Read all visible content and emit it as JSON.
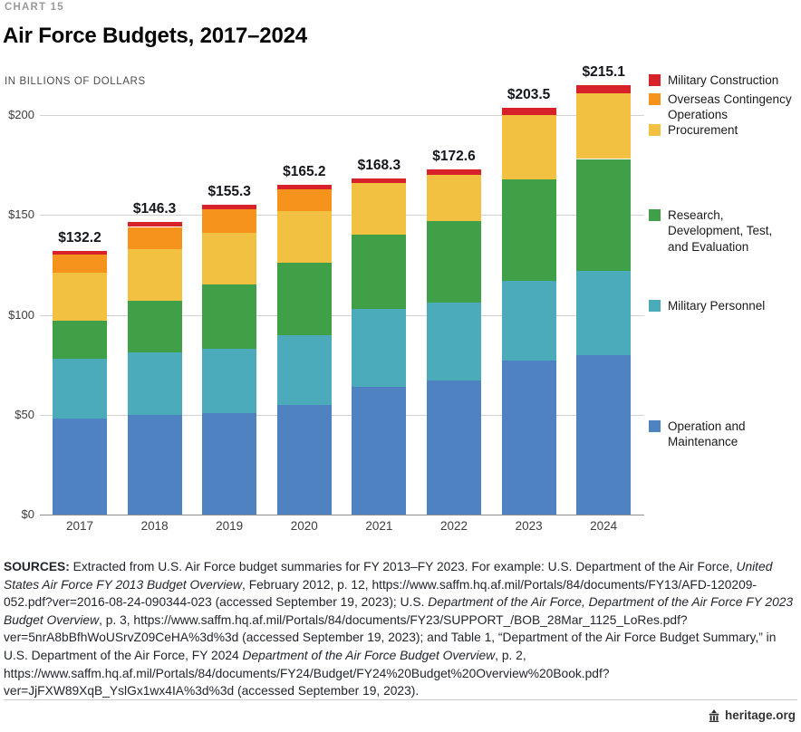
{
  "header": {
    "kicker": "CHART 15",
    "title": "Air Force Budgets, 2017–2024",
    "units_label": "IN BILLIONS OF DOLLARS"
  },
  "chart_data": {
    "type": "bar",
    "stacked": true,
    "title": "Air Force Budgets, 2017–2024",
    "xlabel": "",
    "ylabel": "In billions of dollars",
    "ylim": [
      0,
      200
    ],
    "grid": true,
    "legend_position": "right",
    "categories": [
      "2017",
      "2018",
      "2019",
      "2020",
      "2021",
      "2022",
      "2023",
      "2024"
    ],
    "series": [
      {
        "name": "Operation and Maintenance",
        "color": "#4e82c0",
        "values": [
          48.0,
          50.0,
          51.0,
          55.0,
          64.0,
          67.0,
          77.0,
          80.0
        ]
      },
      {
        "name": "Military Personnel",
        "color": "#4babba",
        "values": [
          30.0,
          31.0,
          32.0,
          35.0,
          39.0,
          39.0,
          40.0,
          42.0
        ]
      },
      {
        "name": "Research, Development, Test, and Evaluation",
        "color": "#3fa047",
        "values": [
          19.0,
          26.0,
          32.0,
          36.0,
          37.0,
          41.0,
          51.0,
          56.0
        ]
      },
      {
        "name": "Procurement",
        "color": "#f3c141",
        "values": [
          24.0,
          26.0,
          26.0,
          26.0,
          26.0,
          23.0,
          32.0,
          33.0
        ]
      },
      {
        "name": "Overseas Contingency Operations",
        "color": "#f6931d",
        "values": [
          9.0,
          11.0,
          12.0,
          11.0,
          0,
          0,
          0,
          0
        ]
      },
      {
        "name": "Military Construction",
        "color": "#d7222a",
        "values": [
          2.2,
          2.3,
          2.3,
          2.2,
          2.3,
          2.6,
          3.5,
          4.1
        ]
      }
    ],
    "totals": [
      132.2,
      146.3,
      155.3,
      165.2,
      168.3,
      172.6,
      203.5,
      215.1
    ],
    "totals_display": [
      "$132.2",
      "$146.3",
      "$155.3",
      "$165.2",
      "$168.3",
      "$172.6",
      "$203.5",
      "$215.1"
    ],
    "yticks": [
      0,
      50,
      100,
      150,
      200
    ],
    "ytick_labels": [
      "$0",
      "$50",
      "$100",
      "$150",
      "$200"
    ]
  },
  "legend": {
    "items": [
      {
        "label": "Military Construction",
        "color": "#d7222a"
      },
      {
        "label": "Overseas Contingency Operations",
        "color": "#f6931d"
      },
      {
        "label": "Procurement",
        "color": "#f3c141"
      },
      {
        "label": "Research, Development, Test, and Evaluation",
        "color": "#3fa047"
      },
      {
        "label": "Military Personnel",
        "color": "#4babba"
      },
      {
        "label": "Operation and Maintenance",
        "color": "#4e82c0"
      }
    ]
  },
  "footer": {
    "sources_segments": [
      {
        "style": "b",
        "text": "SOURCES: "
      },
      {
        "style": "n",
        "text": "Extracted from U.S. Air Force budget summaries for FY 2013–FY 2023. For example: U.S. Department of the Air Force, "
      },
      {
        "style": "i",
        "text": "United States Air Force FY 2013 Budget Overview"
      },
      {
        "style": "n",
        "text": ", February 2012, p. 12, https://www.saffm.hq.af.mil/Portals/84/documents/FY13/AFD-120209-052.pdf?ver=2016-08-24-090344-023 (accessed September 19, 2023); U.S. "
      },
      {
        "style": "i",
        "text": "Department of the Air Force, Department of the Air Force FY 2023 Budget Overview"
      },
      {
        "style": "n",
        "text": ", p. 3, https://www.saffm.hq.af.mil/Portals/84/documents/FY23/SUPPORT_/BOB_28Mar_1125_LoRes.pdf?ver=5nrA8bBfhWoUSrvZ09CeHA%3d%3d (accessed September 19, 2023); and Table 1, “Department of the Air Force Budget Summary,” in U.S. Department of the Air Force, FY 2024 "
      },
      {
        "style": "i",
        "text": "Department of the Air Force Budget Overview"
      },
      {
        "style": "n",
        "text": ", p. 2, https://www.saffm.hq.af.mil/Portals/84/documents/FY24/Budget/FY24%20Budget%20Overview%20Book.pdf?ver=JjFXW89XqB_YslGx1wx4IA%3d%3d (accessed September 19, 2023)."
      }
    ],
    "site": "heritage.org"
  }
}
